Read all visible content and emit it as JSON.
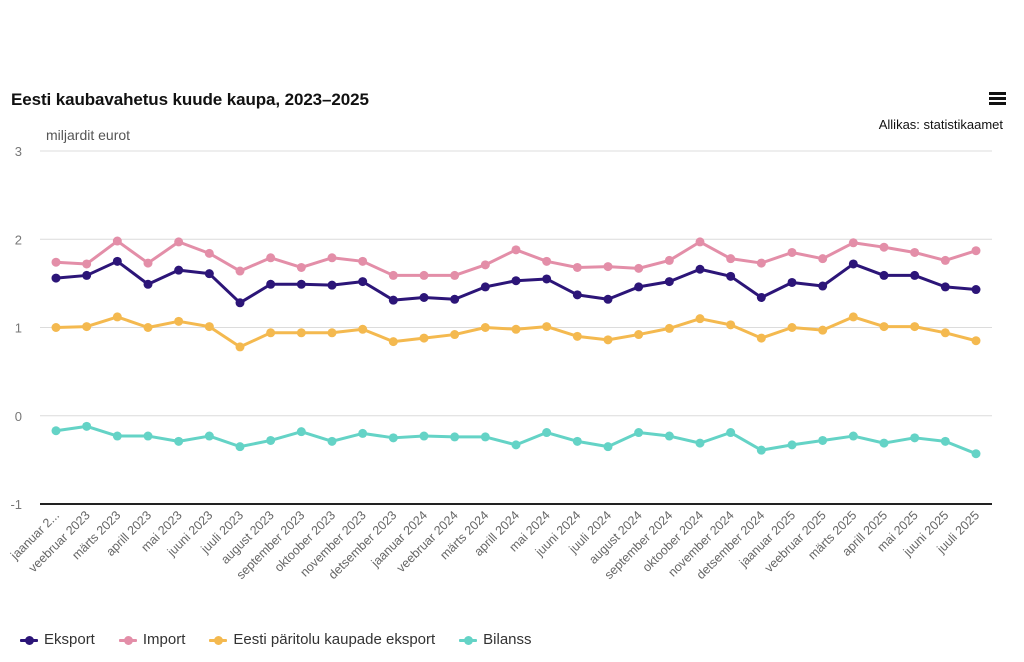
{
  "header": {
    "title": "Eesti kaubavahetus kuude kaupa, 2023–2025",
    "menu_icon": "hamburger-menu-icon",
    "source": "Allikas: statistikaamet"
  },
  "chart_data": {
    "type": "line",
    "title": "Eesti kaubavahetus kuude kaupa, 2023–2025",
    "xlabel": "",
    "ylabel": "miljardit eurot",
    "ylim": [
      -1,
      3
    ],
    "yticks": [
      "3",
      "2",
      "1",
      "0",
      "-1"
    ],
    "ytick_values": [
      3,
      2,
      1,
      0,
      -1
    ],
    "grid": true,
    "legend_position": "bottom-left",
    "categories": [
      "jaanuar 2...",
      "veebruar 2023",
      "märts 2023",
      "aprill 2023",
      "mai 2023",
      "juuni 2023",
      "juuli 2023",
      "august 2023",
      "september 2023",
      "oktoober 2023",
      "november 2023",
      "detsember 2023",
      "jaanuar 2024",
      "veebruar 2024",
      "märts 2024",
      "aprill 2024",
      "mai 2024",
      "juuni 2024",
      "juuli 2024",
      "august 2024",
      "september 2024",
      "oktoober 2024",
      "november 2024",
      "detsember 2024",
      "jaanuar 2025",
      "veebruar 2025",
      "märts 2025",
      "aprill 2025",
      "mai 2025",
      "juuni 2025",
      "juuli 2025"
    ],
    "series": [
      {
        "name": "Eksport",
        "color": "#2c1578",
        "values": [
          1.56,
          1.59,
          1.75,
          1.49,
          1.65,
          1.61,
          1.28,
          1.49,
          1.49,
          1.48,
          1.52,
          1.31,
          1.34,
          1.32,
          1.46,
          1.53,
          1.55,
          1.37,
          1.32,
          1.46,
          1.52,
          1.66,
          1.58,
          1.34,
          1.51,
          1.47,
          1.72,
          1.59,
          1.59,
          1.46,
          1.43
        ]
      },
      {
        "name": "Import",
        "color": "#e38ea8",
        "values": [
          1.74,
          1.72,
          1.98,
          1.73,
          1.97,
          1.84,
          1.64,
          1.79,
          1.68,
          1.79,
          1.75,
          1.59,
          1.59,
          1.59,
          1.71,
          1.88,
          1.75,
          1.68,
          1.69,
          1.67,
          1.76,
          1.97,
          1.78,
          1.73,
          1.85,
          1.78,
          1.96,
          1.91,
          1.85,
          1.76,
          1.87
        ]
      },
      {
        "name": "Eesti päritolu kaupade eksport",
        "color": "#f4b94f",
        "values": [
          1.0,
          1.01,
          1.12,
          1.0,
          1.07,
          1.01,
          0.78,
          0.94,
          0.94,
          0.94,
          0.98,
          0.84,
          0.88,
          0.92,
          1.0,
          0.98,
          1.01,
          0.9,
          0.86,
          0.92,
          0.99,
          1.1,
          1.03,
          0.88,
          1.0,
          0.97,
          1.12,
          1.01,
          1.01,
          0.94,
          0.85
        ]
      },
      {
        "name": "Bilanss",
        "color": "#64d3c6",
        "values": [
          -0.17,
          -0.12,
          -0.23,
          -0.23,
          -0.29,
          -0.23,
          -0.35,
          -0.28,
          -0.18,
          -0.29,
          -0.2,
          -0.25,
          -0.23,
          -0.24,
          -0.24,
          -0.33,
          -0.19,
          -0.29,
          -0.35,
          -0.19,
          -0.23,
          -0.31,
          -0.19,
          -0.39,
          -0.33,
          -0.28,
          -0.23,
          -0.31,
          -0.25,
          -0.29,
          -0.43
        ]
      }
    ]
  }
}
